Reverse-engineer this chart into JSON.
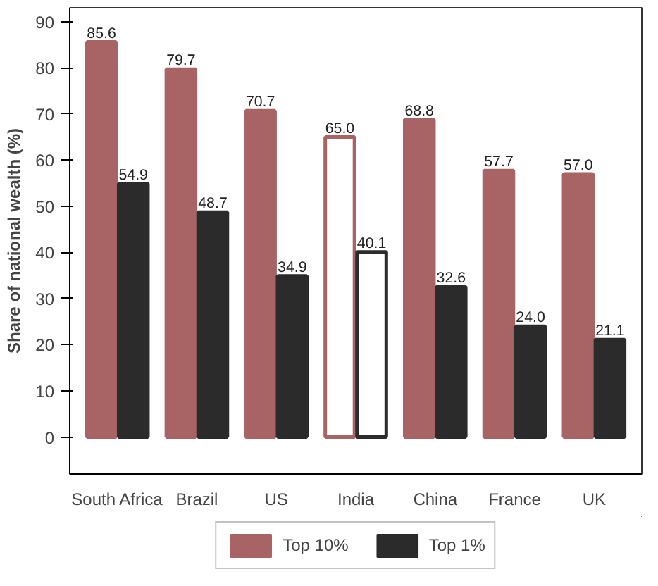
{
  "chart_data": {
    "type": "bar",
    "ylabel": "Share of national wealth (%)",
    "categories": [
      "South Africa",
      "Brazil",
      "US",
      "India",
      "China",
      "France",
      "UK"
    ],
    "series": [
      {
        "name": "Top 10%",
        "color": "#a86464",
        "colors": [
          "#a86464",
          "#a86464",
          "#a86464",
          "#ffffff",
          "#a86464",
          "#a86464",
          "#a86464"
        ],
        "values": [
          85.6,
          79.7,
          70.7,
          65.0,
          68.8,
          57.7,
          57.0
        ],
        "value_labels": [
          "85.6",
          "79.7",
          "70.7",
          "65.0",
          "68.8",
          "57.7",
          "57.0"
        ]
      },
      {
        "name": "Top 1%",
        "color": "#2b2b2b",
        "colors": [
          "#2b2b2b",
          "#2b2b2b",
          "#2b2b2b",
          "#ffffff",
          "#2b2b2b",
          "#2b2b2b",
          "#2b2b2b"
        ],
        "values": [
          54.9,
          48.7,
          34.9,
          40.1,
          32.6,
          24.0,
          21.1
        ],
        "value_labels": [
          "54.9",
          "48.7",
          "34.9",
          "40.1",
          "32.6",
          "24.0",
          "21.1"
        ]
      }
    ],
    "ylim": [
      -8,
      93
    ],
    "yticks": [
      0,
      10,
      20,
      30,
      40,
      50,
      60,
      70,
      80,
      90
    ],
    "grid": false,
    "legend": "bottom"
  }
}
